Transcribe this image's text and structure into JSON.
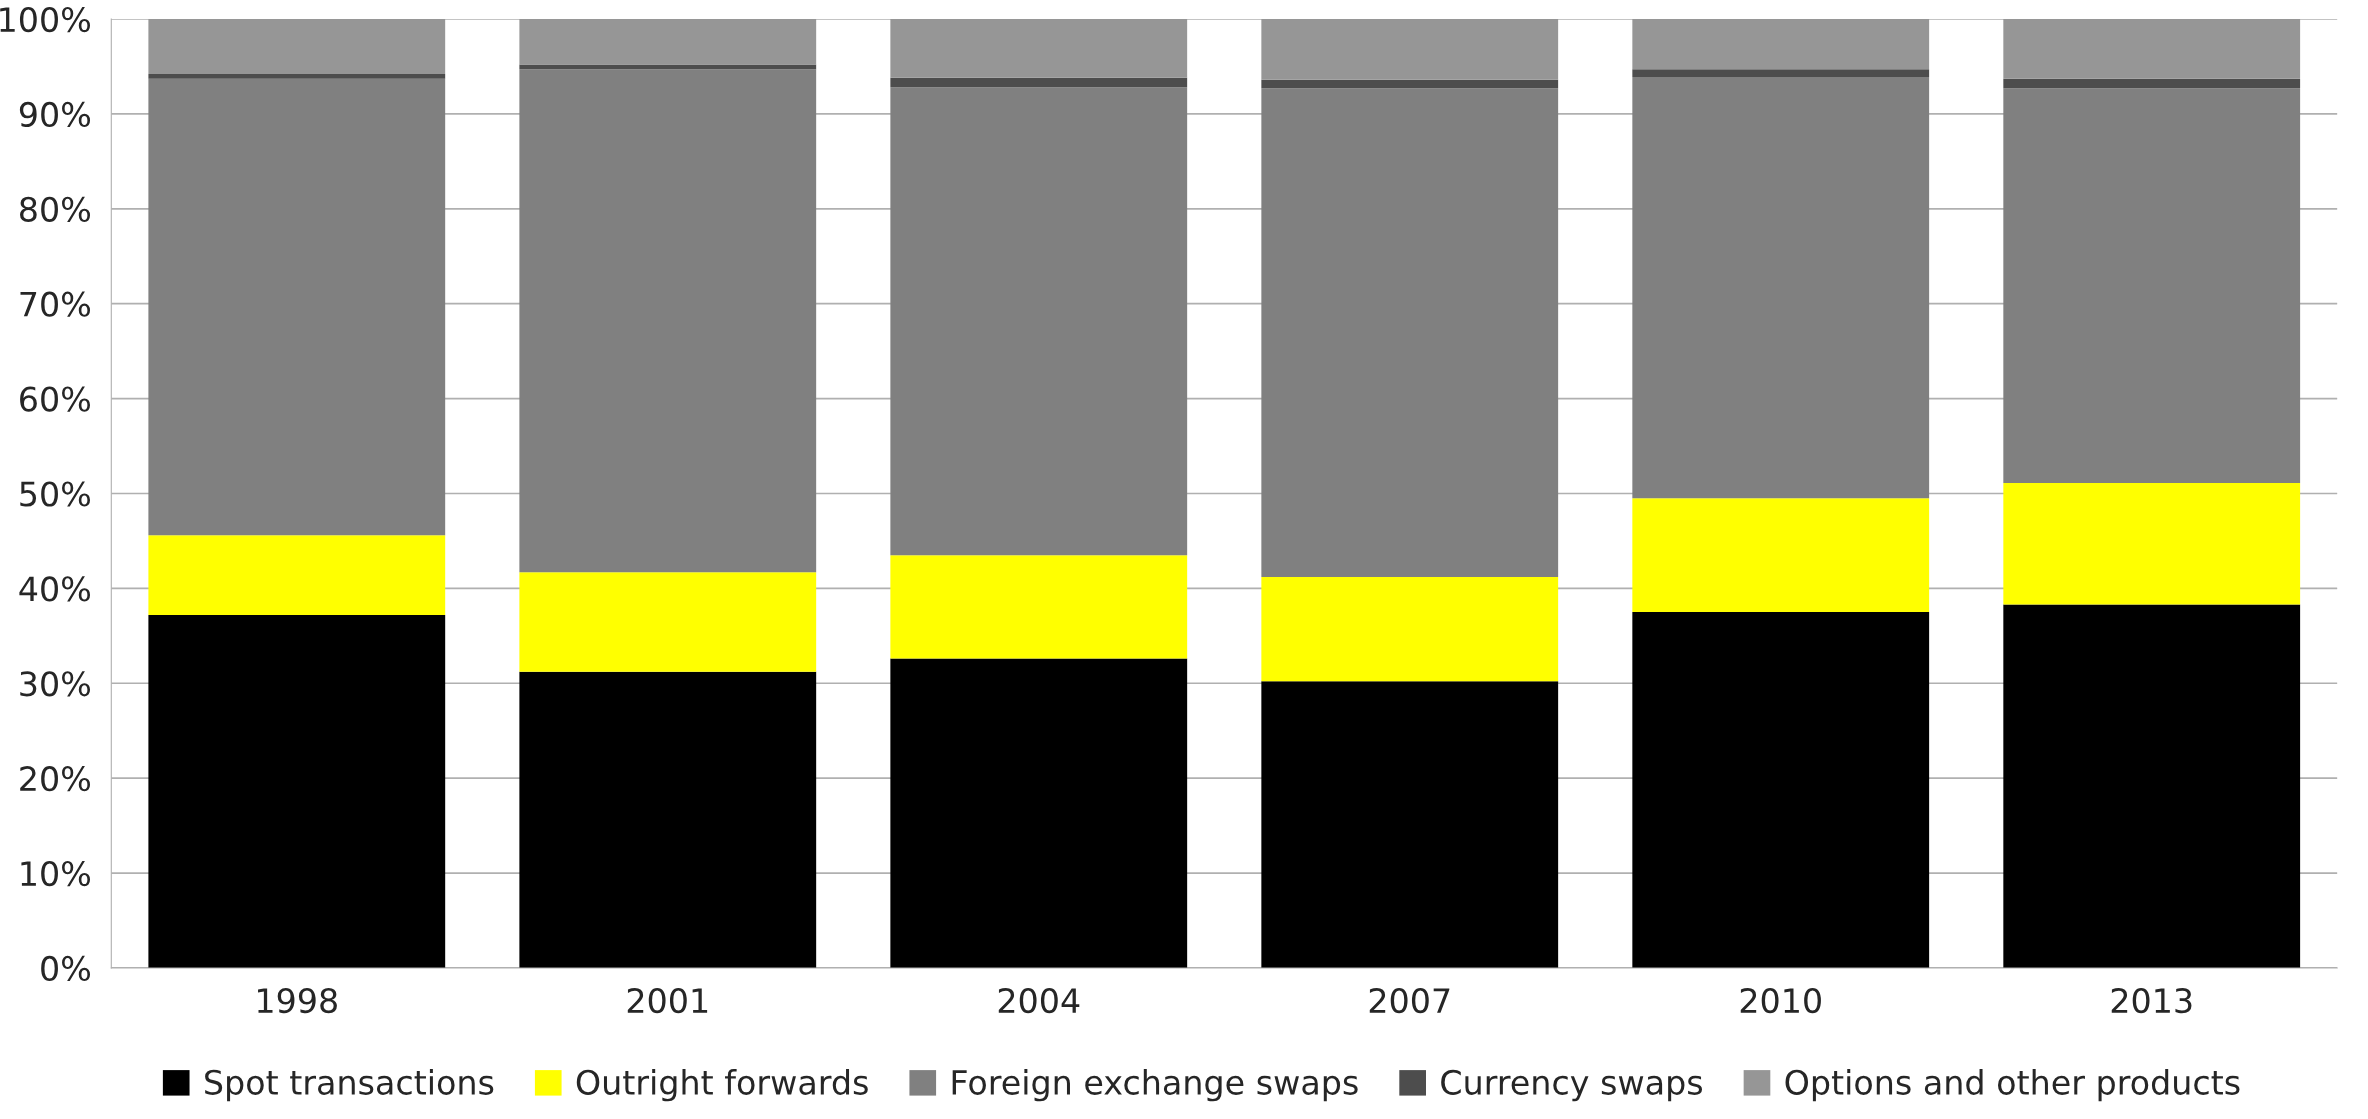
{
  "chart_data": {
    "type": "bar",
    "stacked": true,
    "categories": [
      "1998",
      "2001",
      "2004",
      "2007",
      "2010",
      "2013"
    ],
    "series": [
      {
        "name": "Spot transactions",
        "color": "#000000",
        "values": [
          37.2,
          31.2,
          32.6,
          30.2,
          37.5,
          38.3
        ]
      },
      {
        "name": "Outright forwards",
        "color": "#ffff00",
        "values": [
          8.4,
          10.5,
          10.9,
          11.0,
          12.0,
          12.8
        ]
      },
      {
        "name": "Foreign exchange swaps",
        "color": "#808080",
        "values": [
          48.1,
          53.0,
          49.3,
          51.5,
          44.4,
          41.6
        ]
      },
      {
        "name": "Currency swaps",
        "color": "#4d4d4d",
        "values": [
          0.5,
          0.5,
          1.0,
          0.9,
          0.8,
          1.0
        ]
      },
      {
        "name": "Options and other products",
        "color": "#969696",
        "values": [
          5.8,
          4.8,
          6.2,
          6.4,
          5.3,
          6.3
        ]
      }
    ],
    "ylim": [
      0,
      100
    ],
    "yticks": [
      {
        "value": 0,
        "label": "0%"
      },
      {
        "value": 10,
        "label": "10%"
      },
      {
        "value": 20,
        "label": "20%"
      },
      {
        "value": 30,
        "label": "30%"
      },
      {
        "value": 40,
        "label": "40%"
      },
      {
        "value": 50,
        "label": "50%"
      },
      {
        "value": 60,
        "label": "60%"
      },
      {
        "value": 70,
        "label": "70%"
      },
      {
        "value": 80,
        "label": "80%"
      },
      {
        "value": 90,
        "label": "90%"
      },
      {
        "value": 100,
        "label": "100%"
      }
    ],
    "grid": "y",
    "legend": "bottom"
  }
}
